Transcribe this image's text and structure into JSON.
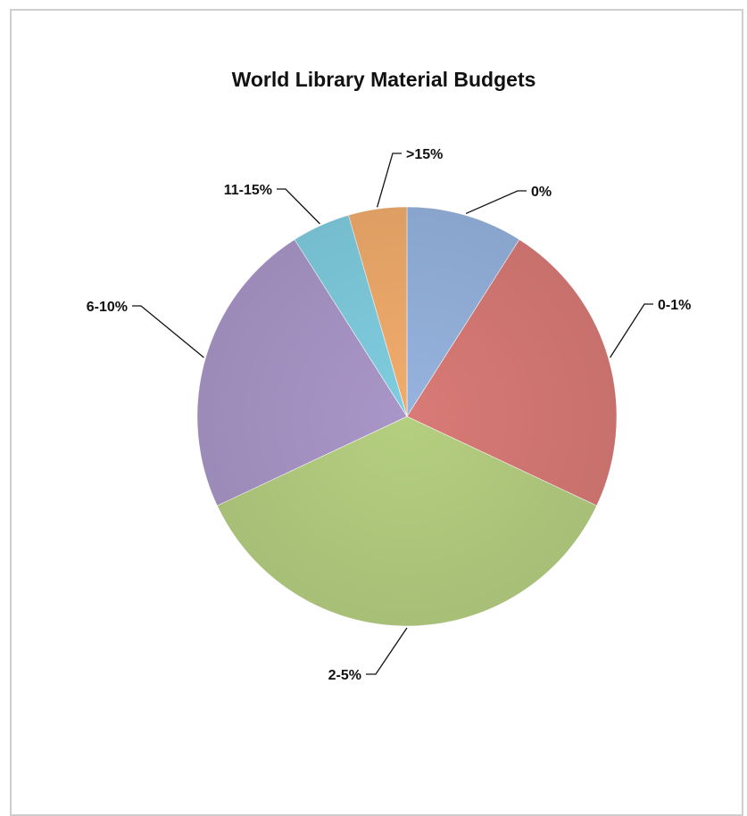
{
  "chart_data": {
    "type": "pie",
    "title": "World Library Material Budgets",
    "slices": [
      {
        "label": "0%",
        "value": 9,
        "color": "#95b3de"
      },
      {
        "label": "0-1%",
        "value": 23,
        "color": "#d97a76"
      },
      {
        "label": "2-5%",
        "value": 36,
        "color": "#b5cf80"
      },
      {
        "label": "6-10%",
        "value": 23,
        "color": "#a996c8"
      },
      {
        "label": "11-15%",
        "value": 4.5,
        "color": "#7fcde0"
      },
      {
        "label": ">15%",
        "value": 4.5,
        "color": "#f1ac6c"
      }
    ],
    "start_angle_deg": 0,
    "direction": "clockwise",
    "legend": "none",
    "data_labels": "category names with leader lines"
  }
}
